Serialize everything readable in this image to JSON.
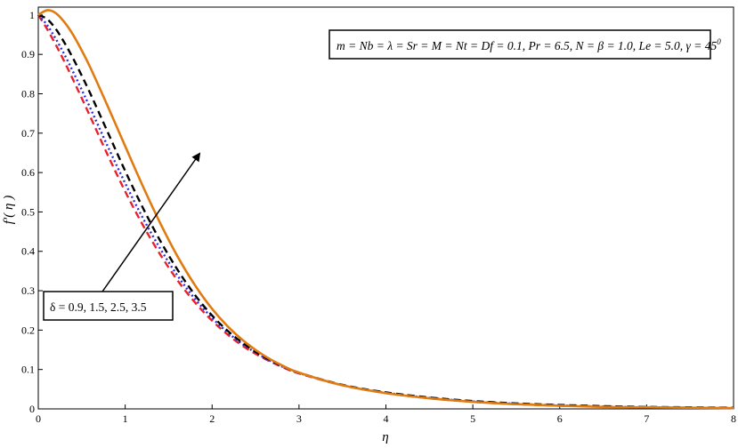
{
  "chart_data": {
    "type": "line",
    "title": "",
    "xlabel": "η",
    "ylabel": "f′( η )",
    "xlim": [
      0,
      8
    ],
    "ylim": [
      0,
      1.02
    ],
    "xticks": [
      "0",
      "1",
      "2",
      "3",
      "4",
      "5",
      "6",
      "7",
      "8"
    ],
    "yticks": [
      "0",
      "0.1",
      "0.2",
      "0.3",
      "0.4",
      "0.5",
      "0.6",
      "0.7",
      "0.8",
      "0.9",
      "1"
    ],
    "grid": false,
    "legend": "none",
    "annotations": {
      "parameters": "m = Nb = λ = Sr = M = Nt = Df = 0.1, Pr = 6.5, N = β = 1.0, Le = 5.0, γ = 45",
      "parameters_superscript": "0",
      "delta_label": "δ = 0.9, 1.5, 2.5, 3.5"
    },
    "x": [
      0,
      0.1,
      0.2,
      0.3,
      0.4,
      0.5,
      0.6,
      0.8,
      1.0,
      1.2,
      1.4,
      1.6,
      1.8,
      2.0,
      2.2,
      2.4,
      2.6,
      2.8,
      3.0,
      3.5,
      4.0,
      4.5,
      5.0,
      5.5,
      6.0,
      6.5,
      7.0,
      7.5,
      8.0
    ],
    "series": [
      {
        "color": "#e8202a",
        "dash": "dashed",
        "values": [
          1.0,
          0.965,
          0.925,
          0.882,
          0.836,
          0.789,
          0.741,
          0.644,
          0.552,
          0.468,
          0.393,
          0.327,
          0.271,
          0.224,
          0.185,
          0.153,
          0.128,
          0.107,
          0.09,
          0.06,
          0.04,
          0.027,
          0.018,
          0.012,
          0.008,
          0.006,
          0.004,
          0.003,
          0.002
        ]
      },
      {
        "color": "#2a2ae0",
        "dash": "dotted",
        "values": [
          1.0,
          0.975,
          0.94,
          0.9,
          0.856,
          0.81,
          0.763,
          0.666,
          0.573,
          0.486,
          0.408,
          0.339,
          0.28,
          0.231,
          0.19,
          0.157,
          0.13,
          0.108,
          0.091,
          0.06,
          0.041,
          0.028,
          0.019,
          0.013,
          0.009,
          0.006,
          0.004,
          0.003,
          0.002
        ]
      },
      {
        "color": "#000000",
        "dash": "dashed",
        "values": [
          1.0,
          0.99,
          0.965,
          0.93,
          0.89,
          0.846,
          0.8,
          0.702,
          0.604,
          0.512,
          0.428,
          0.354,
          0.29,
          0.237,
          0.194,
          0.16,
          0.132,
          0.11,
          0.092,
          0.061,
          0.042,
          0.029,
          0.02,
          0.014,
          0.01,
          0.007,
          0.005,
          0.004,
          0.003
        ]
      },
      {
        "color": "#e07b10",
        "dash": "solid",
        "values": [
          1.0,
          1.012,
          1.005,
          0.982,
          0.95,
          0.91,
          0.866,
          0.768,
          0.667,
          0.567,
          0.473,
          0.388,
          0.315,
          0.254,
          0.205,
          0.166,
          0.135,
          0.111,
          0.092,
          0.06,
          0.04,
          0.027,
          0.018,
          0.012,
          0.008,
          0.005,
          0.004,
          0.003,
          0.002
        ]
      }
    ]
  }
}
